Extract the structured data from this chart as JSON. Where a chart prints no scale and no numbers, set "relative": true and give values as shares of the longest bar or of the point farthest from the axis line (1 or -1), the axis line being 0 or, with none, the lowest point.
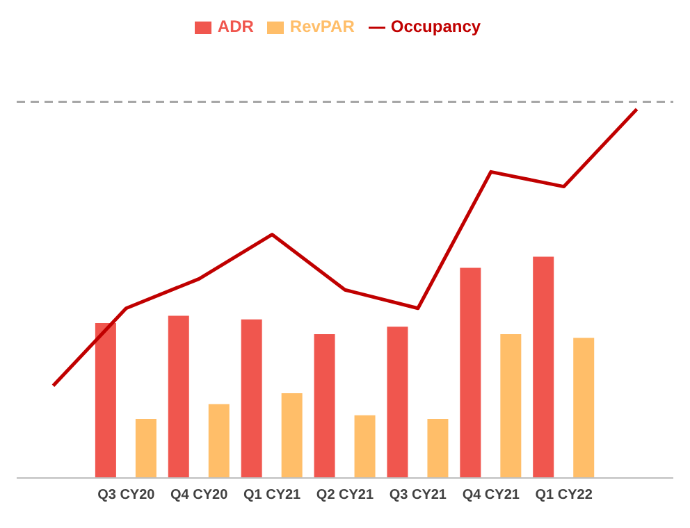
{
  "chart_data": {
    "type": "bar",
    "relative": true,
    "categories": [
      null,
      "Q3 CY20",
      "Q4 CY20",
      "Q1 CY21",
      "Q2 CY21",
      "Q3 CY21",
      "Q4 CY21",
      "Q1 CY22",
      null
    ],
    "series": [
      {
        "name": "ADR",
        "color": "#f0564e",
        "values": [
          null,
          0.42,
          0.44,
          0.43,
          0.39,
          0.41,
          0.57,
          0.6,
          null
        ]
      },
      {
        "name": "RevPAR",
        "color": "#ffbe69",
        "values": [
          null,
          0.16,
          0.2,
          0.23,
          0.17,
          0.16,
          0.39,
          0.38,
          null
        ]
      },
      {
        "name": "Occupancy",
        "type": "line",
        "color": "#c00000",
        "values": [
          0.25,
          0.46,
          0.54,
          0.66,
          0.51,
          0.46,
          0.83,
          0.79,
          1.0
        ]
      }
    ],
    "ref_lines": [
      {
        "axis": "y",
        "value": 1.02,
        "color": "#a6a6a6",
        "line_style": "dashed"
      }
    ],
    "legend": "top",
    "marker": "none"
  }
}
